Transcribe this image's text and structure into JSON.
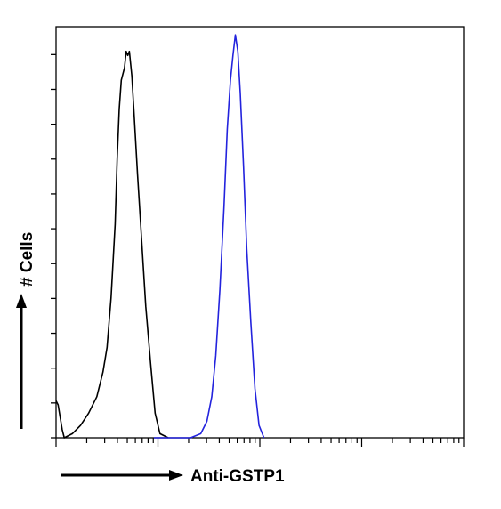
{
  "chart_data": {
    "type": "line",
    "title": "",
    "xlabel": "Anti-GSTP1",
    "ylabel": "# Cells",
    "xscale": "log",
    "xlim": [
      0,
      1
    ],
    "ylim": [
      0,
      1
    ],
    "grid": false,
    "legend": "none",
    "series": [
      {
        "color": "#000000",
        "points": [
          [
            0.0,
            0.09
          ],
          [
            0.005,
            0.08
          ],
          [
            0.01,
            0.05
          ],
          [
            0.015,
            0.02
          ],
          [
            0.02,
            0.0
          ],
          [
            0.04,
            0.01
          ],
          [
            0.06,
            0.03
          ],
          [
            0.08,
            0.06
          ],
          [
            0.1,
            0.1
          ],
          [
            0.115,
            0.16
          ],
          [
            0.125,
            0.22
          ],
          [
            0.135,
            0.34
          ],
          [
            0.145,
            0.52
          ],
          [
            0.15,
            0.68
          ],
          [
            0.155,
            0.8
          ],
          [
            0.16,
            0.87
          ],
          [
            0.168,
            0.9
          ],
          [
            0.172,
            0.94
          ],
          [
            0.176,
            0.93
          ],
          [
            0.18,
            0.94
          ],
          [
            0.186,
            0.88
          ],
          [
            0.192,
            0.78
          ],
          [
            0.2,
            0.64
          ],
          [
            0.21,
            0.48
          ],
          [
            0.22,
            0.32
          ],
          [
            0.232,
            0.18
          ],
          [
            0.243,
            0.06
          ],
          [
            0.255,
            0.01
          ],
          [
            0.275,
            0.0
          ]
        ]
      },
      {
        "color": "#2323dd",
        "points": [
          [
            0.24,
            0.0
          ],
          [
            0.3,
            0.0
          ],
          [
            0.33,
            0.0
          ],
          [
            0.355,
            0.01
          ],
          [
            0.37,
            0.04
          ],
          [
            0.382,
            0.1
          ],
          [
            0.392,
            0.2
          ],
          [
            0.402,
            0.36
          ],
          [
            0.412,
            0.56
          ],
          [
            0.42,
            0.75
          ],
          [
            0.428,
            0.87
          ],
          [
            0.434,
            0.93
          ],
          [
            0.44,
            0.98
          ],
          [
            0.446,
            0.94
          ],
          [
            0.452,
            0.84
          ],
          [
            0.46,
            0.66
          ],
          [
            0.468,
            0.46
          ],
          [
            0.478,
            0.28
          ],
          [
            0.488,
            0.12
          ],
          [
            0.498,
            0.03
          ],
          [
            0.51,
            0.0
          ]
        ]
      }
    ]
  }
}
